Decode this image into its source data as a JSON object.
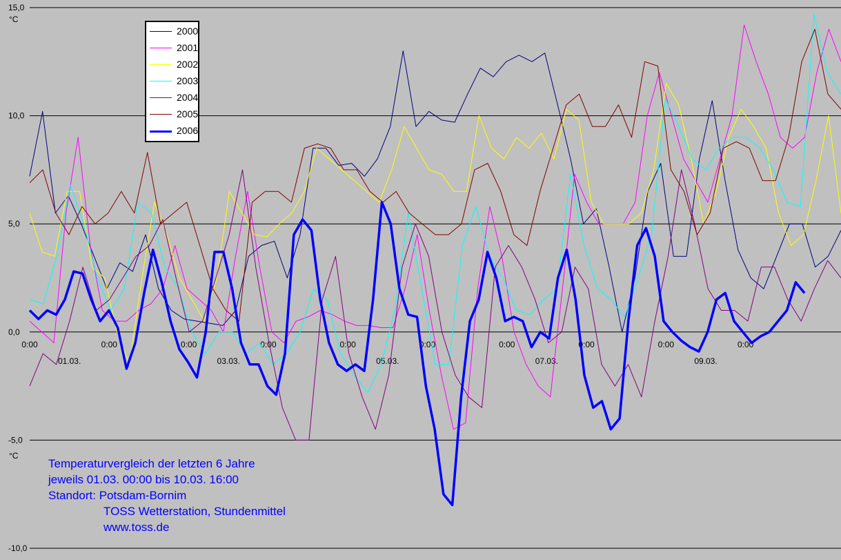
{
  "chart_data": {
    "type": "line",
    "ylim": [
      -10,
      15
    ],
    "y_ticks": [
      "-10,0",
      "-5,0",
      "0,0",
      "5,0",
      "10,0",
      "15,0"
    ],
    "y_unit_top": "°C",
    "y_unit_bottom": "°C",
    "x_day_labels": [
      "01.03.",
      "03.03.",
      "05.03.",
      "07.03.",
      "09.03."
    ],
    "x_time_labels": [
      "0:00",
      "0:00",
      "0:00",
      "0:00",
      "0:00",
      "0:00",
      "0:00",
      "0:00",
      "0:00",
      "0:00"
    ],
    "grid": true,
    "legend_position": "top-left",
    "series": [
      {
        "name": "2000",
        "color": "#000080",
        "width": 1,
        "values": [
          7.2,
          10.2,
          5.5,
          6.3,
          5.0,
          3.5,
          2.0,
          3.2,
          2.8,
          4.5,
          2.0,
          1.0,
          0.6,
          0.5,
          0.4,
          0.3,
          1.0,
          3.5,
          4.0,
          4.2,
          2.5,
          4.5,
          8.5,
          8.5,
          7.7,
          7.8,
          7.2,
          8.0,
          9.5,
          13.0,
          9.5,
          10.2,
          9.8,
          9.7,
          11.0,
          12.2,
          11.8,
          12.5,
          12.8,
          12.5,
          12.9,
          10.5,
          8.0,
          5.0,
          5.7,
          3.0,
          0.0,
          2.5,
          6.5,
          7.8,
          3.5,
          3.5,
          8.0,
          10.7,
          7.0,
          3.8,
          2.5,
          2.0,
          3.5,
          5.0,
          5.0,
          3.0,
          3.5,
          4.7
        ]
      },
      {
        "name": "2001",
        "color": "#ff00ff",
        "width": 1,
        "values": [
          0.5,
          0.0,
          -0.5,
          5.5,
          9.0,
          4.0,
          1.0,
          0.5,
          0.5,
          1.0,
          1.3,
          2.0,
          4.0,
          2.0,
          1.5,
          1.0,
          0.0,
          3.5,
          6.5,
          3.0,
          0.0,
          -0.5,
          0.5,
          0.7,
          1.0,
          0.8,
          0.5,
          0.3,
          0.3,
          0.2,
          0.2,
          2.0,
          4.5,
          1.0,
          -2.0,
          -4.5,
          -4.2,
          2.0,
          5.8,
          3.5,
          0.0,
          -1.5,
          -2.5,
          -3.0,
          2.0,
          7.3,
          6.0,
          5.0,
          5.0,
          5.0,
          6.0,
          10.0,
          12.0,
          10.0,
          8.0,
          7.0,
          6.0,
          8.0,
          10.0,
          14.2,
          12.5,
          11.0,
          9.0,
          8.5,
          9.0,
          12.0,
          14.0,
          12.5
        ]
      },
      {
        "name": "2002",
        "color": "#ffff00",
        "width": 1,
        "values": [
          5.5,
          3.7,
          3.5,
          6.5,
          6.5,
          3.0,
          2.5,
          0.0,
          -1.5,
          2.5,
          6.0,
          4.5,
          2.5,
          1.5,
          0.5,
          2.5,
          6.5,
          5.5,
          4.5,
          4.4,
          5.0,
          5.5,
          6.5,
          8.5,
          8.0,
          7.5,
          7.0,
          6.5,
          6.0,
          7.5,
          9.5,
          8.5,
          7.5,
          7.3,
          6.5,
          6.5,
          10.0,
          8.5,
          8.0,
          9.0,
          8.5,
          9.2,
          8.0,
          10.3,
          9.8,
          6.0,
          5.0,
          5.0,
          5.0,
          5.5,
          7.5,
          11.5,
          10.5,
          8.0,
          5.0,
          6.5,
          9.0,
          10.3,
          9.5,
          8.5,
          5.5,
          4.0,
          4.5,
          7.0,
          10.0,
          5.5
        ]
      },
      {
        "name": "2003",
        "color": "#00ffff",
        "width": 1,
        "values": [
          1.5,
          1.3,
          3.5,
          6.8,
          5.0,
          2.5,
          1.0,
          2.0,
          6.0,
          5.5,
          3.0,
          2.0,
          0.0,
          -1.0,
          0.0,
          0.0,
          -1.0,
          -0.5,
          -1.5,
          -1.0,
          0.0,
          2.0,
          1.5,
          -1.0,
          -2.0,
          -2.8,
          -1.5,
          1.0,
          5.5,
          2.0,
          -1.5,
          -1.5,
          4.0,
          5.8,
          3.5,
          2.5,
          1.0,
          0.8,
          1.5,
          2.0,
          7.3,
          4.0,
          2.0,
          1.5,
          0.7,
          2.5,
          4.5,
          10.8,
          9.5,
          8.0,
          7.5,
          8.5,
          9.0,
          9.0,
          8.5,
          7.5,
          6.0,
          5.8,
          14.7,
          12.0,
          11.0
        ]
      },
      {
        "name": "2004",
        "color": "#800080",
        "width": 1,
        "values": [
          -2.5,
          -1.0,
          -1.5,
          0.5,
          3.0,
          1.0,
          1.5,
          2.5,
          3.5,
          4.0,
          5.2,
          2.5,
          0.0,
          0.5,
          2.5,
          4.5,
          7.5,
          3.0,
          -0.5,
          -3.5,
          -5.0,
          -5.0,
          1.5,
          3.5,
          -1.0,
          -3.0,
          -4.5,
          -2.0,
          3.0,
          5.0,
          3.5,
          0.0,
          -2.0,
          -3.0,
          -3.5,
          3.0,
          4.0,
          3.0,
          1.5,
          -0.5,
          0.0,
          3.0,
          2.0,
          -1.5,
          -2.5,
          -1.5,
          -3.0,
          0.5,
          3.5,
          7.5,
          5.0,
          2.0,
          1.0,
          1.0,
          0.5,
          3.0,
          3.0,
          1.5,
          0.5,
          2.0,
          3.3,
          2.5
        ]
      },
      {
        "name": "2005",
        "color": "#800000",
        "width": 1,
        "values": [
          6.9,
          7.5,
          5.5,
          4.5,
          5.8,
          5.0,
          5.5,
          6.5,
          5.5,
          8.3,
          5.0,
          5.5,
          6.0,
          4.0,
          2.0,
          1.0,
          0.5,
          6.0,
          6.5,
          6.5,
          6.0,
          8.5,
          8.7,
          8.5,
          7.5,
          7.5,
          6.5,
          6.0,
          6.5,
          5.5,
          5.0,
          4.5,
          4.5,
          5.0,
          7.5,
          7.8,
          6.5,
          4.5,
          4.0,
          6.5,
          8.5,
          10.5,
          11.0,
          9.5,
          9.5,
          10.5,
          9.0,
          12.5,
          12.3,
          7.5,
          6.5,
          4.5,
          5.5,
          8.5,
          8.8,
          8.5,
          7.0,
          7.0,
          9.0,
          12.5,
          14.0,
          11.0,
          10.3
        ]
      },
      {
        "name": "2006",
        "color": "#0000ff",
        "width": 3.5,
        "values": [
          1.0,
          0.6,
          1.0,
          0.8,
          1.5,
          2.8,
          2.7,
          1.5,
          0.5,
          1.0,
          0.2,
          -1.7,
          -0.5,
          1.8,
          3.8,
          2.3,
          0.5,
          -0.8,
          -1.4,
          -2.1,
          0.0,
          3.7,
          3.7,
          2.0,
          -0.5,
          -1.5,
          -1.5,
          -2.5,
          -2.9,
          -1.0,
          4.5,
          5.2,
          4.7,
          1.5,
          -0.5,
          -1.5,
          -1.8,
          -1.5,
          -1.8,
          1.5,
          6.0,
          5.0,
          2.0,
          0.8,
          0.7,
          -2.5,
          -4.5,
          -7.5,
          -8.0,
          -3.0,
          0.5,
          1.5,
          3.7,
          2.5,
          0.5,
          0.7,
          0.5,
          -0.7,
          0.0,
          -0.3,
          2.5,
          3.8,
          1.5,
          -2.0,
          -3.5,
          -3.2,
          -4.5,
          -4.0,
          0.5,
          4.0,
          4.8,
          3.5,
          0.5,
          0.0,
          -0.4,
          -0.7,
          -0.9,
          0.0,
          1.5,
          1.8,
          0.5,
          0.0,
          -0.5,
          -0.2,
          0.0,
          0.5,
          1.0,
          2.3,
          1.8
        ]
      }
    ]
  },
  "info": {
    "line1": "Temperaturvergleich der letzten 6 Jahre",
    "line2": "jeweils 01.03. 00:00 bis 10.03. 16:00",
    "line3": "Standort: Potsdam-Bornim",
    "line4": "TOSS Wetterstation, Stundenmittel",
    "line5": "www.toss.de"
  }
}
